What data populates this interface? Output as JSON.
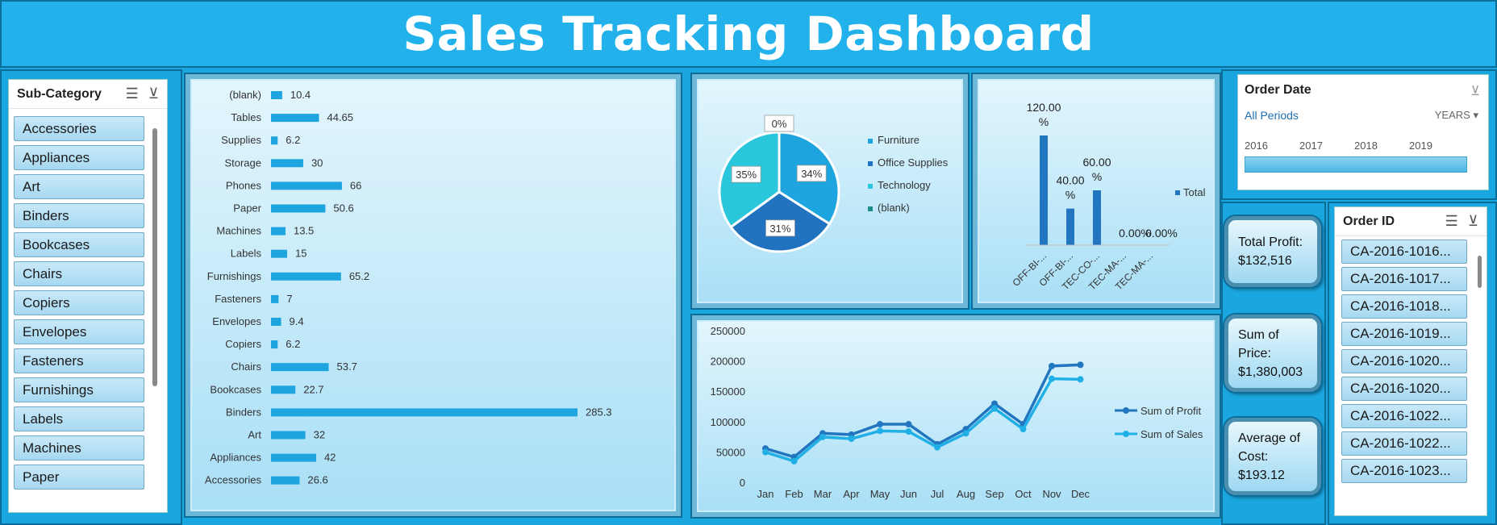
{
  "title": "Sales Tracking Dashboard",
  "subcategory_slicer": {
    "title": "Sub-Category",
    "items": [
      "Accessories",
      "Appliances",
      "Art",
      "Binders",
      "Bookcases",
      "Chairs",
      "Copiers",
      "Envelopes",
      "Fasteners",
      "Furnishings",
      "Labels",
      "Machines",
      "Paper"
    ]
  },
  "order_date_slicer": {
    "title": "Order Date",
    "period_label": "All Periods",
    "level": "YEARS",
    "years": [
      "2016",
      "2017",
      "2018",
      "2019"
    ]
  },
  "order_id_slicer": {
    "title": "Order ID",
    "items": [
      "CA-2016-1016...",
      "CA-2016-1017...",
      "CA-2016-1018...",
      "CA-2016-1019...",
      "CA-2016-1020...",
      "CA-2016-1020...",
      "CA-2016-1022...",
      "CA-2016-1022...",
      "CA-2016-1023..."
    ]
  },
  "kpis": {
    "profit": {
      "label": "Total Profit:",
      "value": "$132,516"
    },
    "price": {
      "label1": "Sum of",
      "label2": "Price:",
      "value": "$1,380,003"
    },
    "cost": {
      "label1": "Average of",
      "label2": "Cost:",
      "value": "$193.12"
    }
  },
  "colors": {
    "accent": "#1aa7df",
    "bar": "#1ea5df",
    "profit": "#2176bf",
    "sales": "#21b0e6",
    "tech": "#2ac6dc"
  },
  "chart_data": [
    {
      "type": "bar",
      "orientation": "horizontal",
      "categories": [
        "(blank)",
        "Tables",
        "Supplies",
        "Storage",
        "Phones",
        "Paper",
        "Machines",
        "Labels",
        "Furnishings",
        "Fasteners",
        "Envelopes",
        "Copiers",
        "Chairs",
        "Bookcases",
        "Binders",
        "Art",
        "Appliances",
        "Accessories"
      ],
      "values": [
        10.4,
        44.65,
        6.2,
        30,
        66,
        50.6,
        13.5,
        15,
        65.2,
        7,
        9.4,
        6.2,
        53.7,
        22.7,
        285.3,
        32,
        42,
        26.6
      ],
      "value_labels": [
        "10.4",
        "44.65",
        "6.2",
        "30",
        "66",
        "50.6",
        "13.5",
        "15",
        "65.2",
        "7",
        "9.4",
        "6.2",
        "53.7",
        "22.7",
        "285.3",
        "32",
        "42",
        "26.6"
      ]
    },
    {
      "type": "pie",
      "labels": [
        "Furniture",
        "Office Supplies",
        "Technology",
        "(blank)"
      ],
      "values": [
        34,
        31,
        35,
        0
      ],
      "value_labels": [
        "34%",
        "31%",
        "35%",
        "0%"
      ],
      "colors": [
        "#1ea5df",
        "#2173c0",
        "#2ac6dc",
        "#1f8f8a"
      ]
    },
    {
      "type": "bar",
      "categories": [
        "OFF-BI-...",
        "OFF-BI-...",
        "TEC-CO-...",
        "TEC-MA-...",
        "TEC-MA-..."
      ],
      "values": [
        120,
        40,
        60,
        0,
        0
      ],
      "value_labels": [
        [
          "120.00",
          "%"
        ],
        [
          "40.00",
          "%"
        ],
        [
          "60.00",
          "%"
        ],
        [
          "0.00%"
        ],
        [
          "0.00%"
        ]
      ],
      "legend": [
        "Total"
      ]
    },
    {
      "type": "line",
      "x": [
        "Jan",
        "Feb",
        "Mar",
        "Apr",
        "May",
        "Jun",
        "Jul",
        "Aug",
        "Sep",
        "Oct",
        "Nov",
        "Dec"
      ],
      "yticks": [
        "250000",
        "200000",
        "150000",
        "100000",
        "50000",
        "0"
      ],
      "ylim": [
        0,
        250000
      ],
      "series": [
        {
          "name": "Sum of Profit",
          "values": [
            57000,
            43000,
            82000,
            80000,
            97000,
            97000,
            64000,
            89000,
            131000,
            97000,
            193000,
            195000
          ]
        },
        {
          "name": "Sum of Sales",
          "values": [
            51000,
            36000,
            76000,
            73000,
            86000,
            85000,
            59000,
            82000,
            123000,
            89000,
            172000,
            171000
          ]
        }
      ]
    }
  ]
}
